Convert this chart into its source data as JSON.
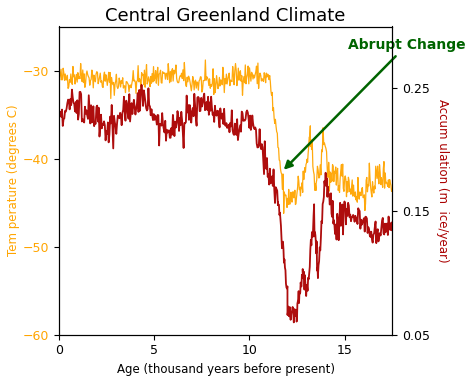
{
  "title": "Central Greenland Climate",
  "xlabel": "Age (thousand years before present)",
  "ylabel_left": "Tem perature (degrees C)",
  "ylabel_right": "Accum ulation (m  ice/year)",
  "xlim": [
    0,
    17.5
  ],
  "ylim_left": [
    -60,
    -25
  ],
  "ylim_right": [
    0.05,
    0.3
  ],
  "xticks": [
    0,
    5,
    10,
    15
  ],
  "yticks_left": [
    -60,
    -50,
    -40,
    -30
  ],
  "yticks_right": [
    0.05,
    0.15,
    0.25
  ],
  "color_temp": "#FFA500",
  "color_accum": "#AA0000",
  "color_arrow": "#006400",
  "annotation_text": "Abrupt Change",
  "annotation_fontsize": 10,
  "title_fontsize": 13,
  "label_fontsize": 8.5,
  "tick_fontsize": 9,
  "figsize": [
    4.69,
    3.83
  ],
  "dpi": 100
}
